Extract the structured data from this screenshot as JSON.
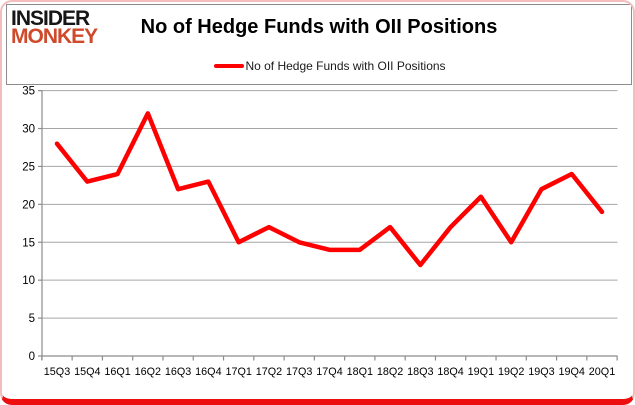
{
  "brand": {
    "line1": "INSIDER",
    "line2": "MONKEY",
    "color_line1": "#161616",
    "color_line2": "#cf4a2b"
  },
  "header": {
    "title": "No of Hedge Funds with OII Positions"
  },
  "legend": {
    "label": "No of Hedge Funds with OII Positions",
    "swatch_color": "#ff0000"
  },
  "colors": {
    "series_line": "#ff0000",
    "gridline": "#a6a6a6",
    "axis": "#8c8c8c",
    "tick_label": "#000000",
    "frame_border": "#f3bdbd",
    "frame_bottom": "#ed0f0f",
    "header_border": "#8c8c8c"
  },
  "chart_data": {
    "type": "line",
    "title": "No of Hedge Funds with OII Positions",
    "categories": [
      "15Q3",
      "15Q4",
      "16Q1",
      "16Q2",
      "16Q3",
      "16Q4",
      "17Q1",
      "17Q2",
      "17Q3",
      "17Q4",
      "18Q1",
      "18Q2",
      "18Q3",
      "18Q4",
      "19Q1",
      "19Q2",
      "19Q3",
      "19Q4",
      "20Q1"
    ],
    "series": [
      {
        "name": "No of Hedge Funds with OII Positions",
        "color": "#ff0000",
        "values": [
          28,
          23,
          24,
          32,
          22,
          23,
          15,
          17,
          15,
          14,
          14,
          17,
          12,
          17,
          21,
          15,
          22,
          24,
          19
        ]
      }
    ],
    "xlabel": "",
    "ylabel": "",
    "ylim": [
      0,
      35
    ],
    "yticks": [
      0,
      5,
      10,
      15,
      20,
      25,
      30,
      35
    ],
    "grid": true,
    "legend_position": "top-center"
  }
}
